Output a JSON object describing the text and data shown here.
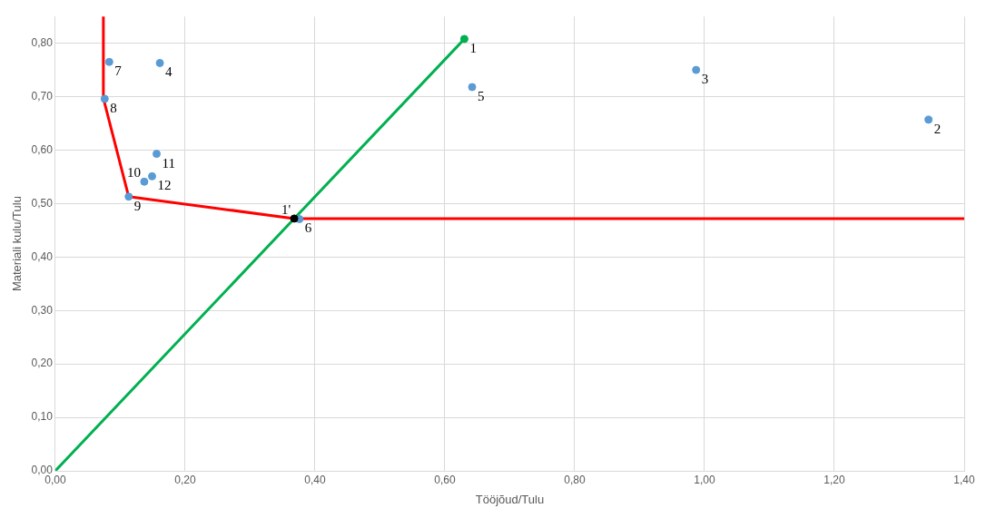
{
  "chart_data": {
    "type": "scatter",
    "xlabel": "Tööjõud/Tulu",
    "ylabel": "Materiali kulu/Tulu",
    "series": [
      {
        "type": "line",
        "color": "#00b050",
        "x": [
          0,
          0.63
        ],
        "values": [
          0,
          0.808
        ],
        "marker": "none"
      },
      {
        "type": "line",
        "color": "#ff0000",
        "x": [
          0.074,
          0.074,
          0.113,
          0.368,
          1.4
        ],
        "values": [
          0.85,
          0.697,
          0.513,
          0.472,
          0.472
        ],
        "marker": "none"
      },
      {
        "type": "scatter",
        "color": "#5b9bd5",
        "x": [
          1.345,
          0.987,
          0.161,
          0.642,
          0.376,
          0.083,
          0.076,
          0.113,
          0.137,
          0.156,
          0.149
        ],
        "values": [
          0.657,
          0.75,
          0.763,
          0.718,
          0.471,
          0.765,
          0.696,
          0.513,
          0.541,
          0.593,
          0.551
        ]
      },
      {
        "type": "scatter",
        "color": "#00b050",
        "x": [
          0.63
        ],
        "values": [
          0.808
        ]
      },
      {
        "type": "scatter",
        "color": "#000000",
        "x": [
          0.368
        ],
        "values": [
          0.472
        ]
      }
    ],
    "annotations": [
      {
        "text": "1",
        "x": 0.63,
        "y": 0.808
      },
      {
        "text": "2",
        "x": 1.345,
        "y": 0.657
      },
      {
        "text": "3",
        "x": 0.987,
        "y": 0.75
      },
      {
        "text": "4",
        "x": 0.161,
        "y": 0.763
      },
      {
        "text": "5",
        "x": 0.642,
        "y": 0.718
      },
      {
        "text": "6",
        "x": 0.376,
        "y": 0.471
      },
      {
        "text": "7",
        "x": 0.083,
        "y": 0.765
      },
      {
        "text": "8",
        "x": 0.076,
        "y": 0.696
      },
      {
        "text": "9",
        "x": 0.113,
        "y": 0.513
      },
      {
        "text": "10",
        "x": 0.137,
        "y": 0.541
      },
      {
        "text": "11",
        "x": 0.156,
        "y": 0.593
      },
      {
        "text": "12",
        "x": 0.149,
        "y": 0.551
      },
      {
        "text": "1'",
        "x": 0.368,
        "y": 0.472
      }
    ],
    "xlim": [
      0,
      1.4
    ],
    "xticks": [
      {
        "value": 0,
        "label": "0,00"
      },
      {
        "value": 0.2,
        "label": "0,20"
      },
      {
        "value": 0.4,
        "label": "0,40"
      },
      {
        "value": 0.6,
        "label": "0,60"
      },
      {
        "value": 0.8,
        "label": "0,80"
      },
      {
        "value": 1.0,
        "label": "1,00"
      },
      {
        "value": 1.2,
        "label": "1,20"
      },
      {
        "value": 1.4,
        "label": "1,40"
      }
    ],
    "ylim": [
      0,
      0.85
    ],
    "yticks": [
      {
        "value": 0,
        "label": "0,00"
      },
      {
        "value": 0.1,
        "label": "0,10"
      },
      {
        "value": 0.2,
        "label": "0,20"
      },
      {
        "value": 0.3,
        "label": "0,30"
      },
      {
        "value": 0.4,
        "label": "0,40"
      },
      {
        "value": 0.5,
        "label": "0,50"
      },
      {
        "value": 0.6,
        "label": "0,60"
      },
      {
        "value": 0.7,
        "label": "0,70"
      },
      {
        "value": 0.8,
        "label": "0,80"
      }
    ],
    "grid": true,
    "legend": false
  }
}
